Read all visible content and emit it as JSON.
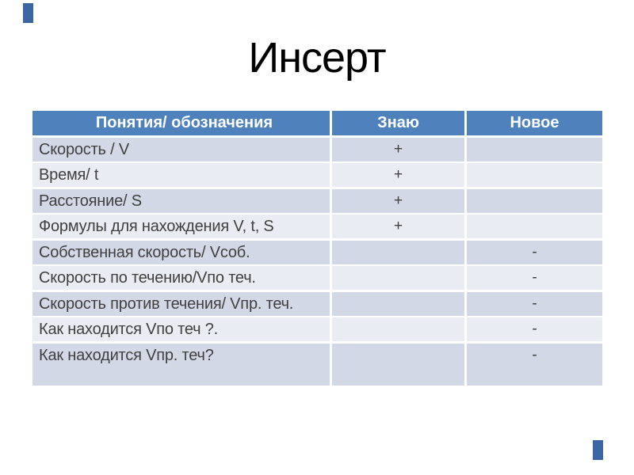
{
  "slide": {
    "title": "Инсерт",
    "background": "#FFFFFF"
  },
  "colors": {
    "header_bg": "#4F81BD",
    "header_text": "#FFFFFF",
    "band_dark": "#D2D8E6",
    "band_light": "#E9ECF3",
    "body_text": "#404040",
    "accent_bar": "#3A66A6"
  },
  "table": {
    "columns": [
      "Понятия/ обозначения",
      "Знаю",
      "Новое"
    ],
    "rows": [
      {
        "concept": "Скорость / V",
        "know": "+",
        "new": ""
      },
      {
        "concept": "Время/ t",
        "know": "+",
        "new": ""
      },
      {
        "concept": "Расстояние/ S",
        "know": "+",
        "new": ""
      },
      {
        "concept": "Формулы для нахождения V, t, S",
        "know": "+",
        "new": ""
      },
      {
        "concept": "Собственная скорость/ Vсоб.",
        "know": "",
        "new": "-"
      },
      {
        "concept": "Скорость по течению/Vпо теч.",
        "know": "",
        "new": "-"
      },
      {
        "concept": "Скорость против течения/ Vпр. теч.",
        "know": "",
        "new": "-"
      },
      {
        "concept": "Как находится Vпо теч ?.",
        "know": "",
        "new": "-"
      },
      {
        "concept": "Как находится Vпр. теч?",
        "know": "",
        "new": "-"
      }
    ]
  }
}
